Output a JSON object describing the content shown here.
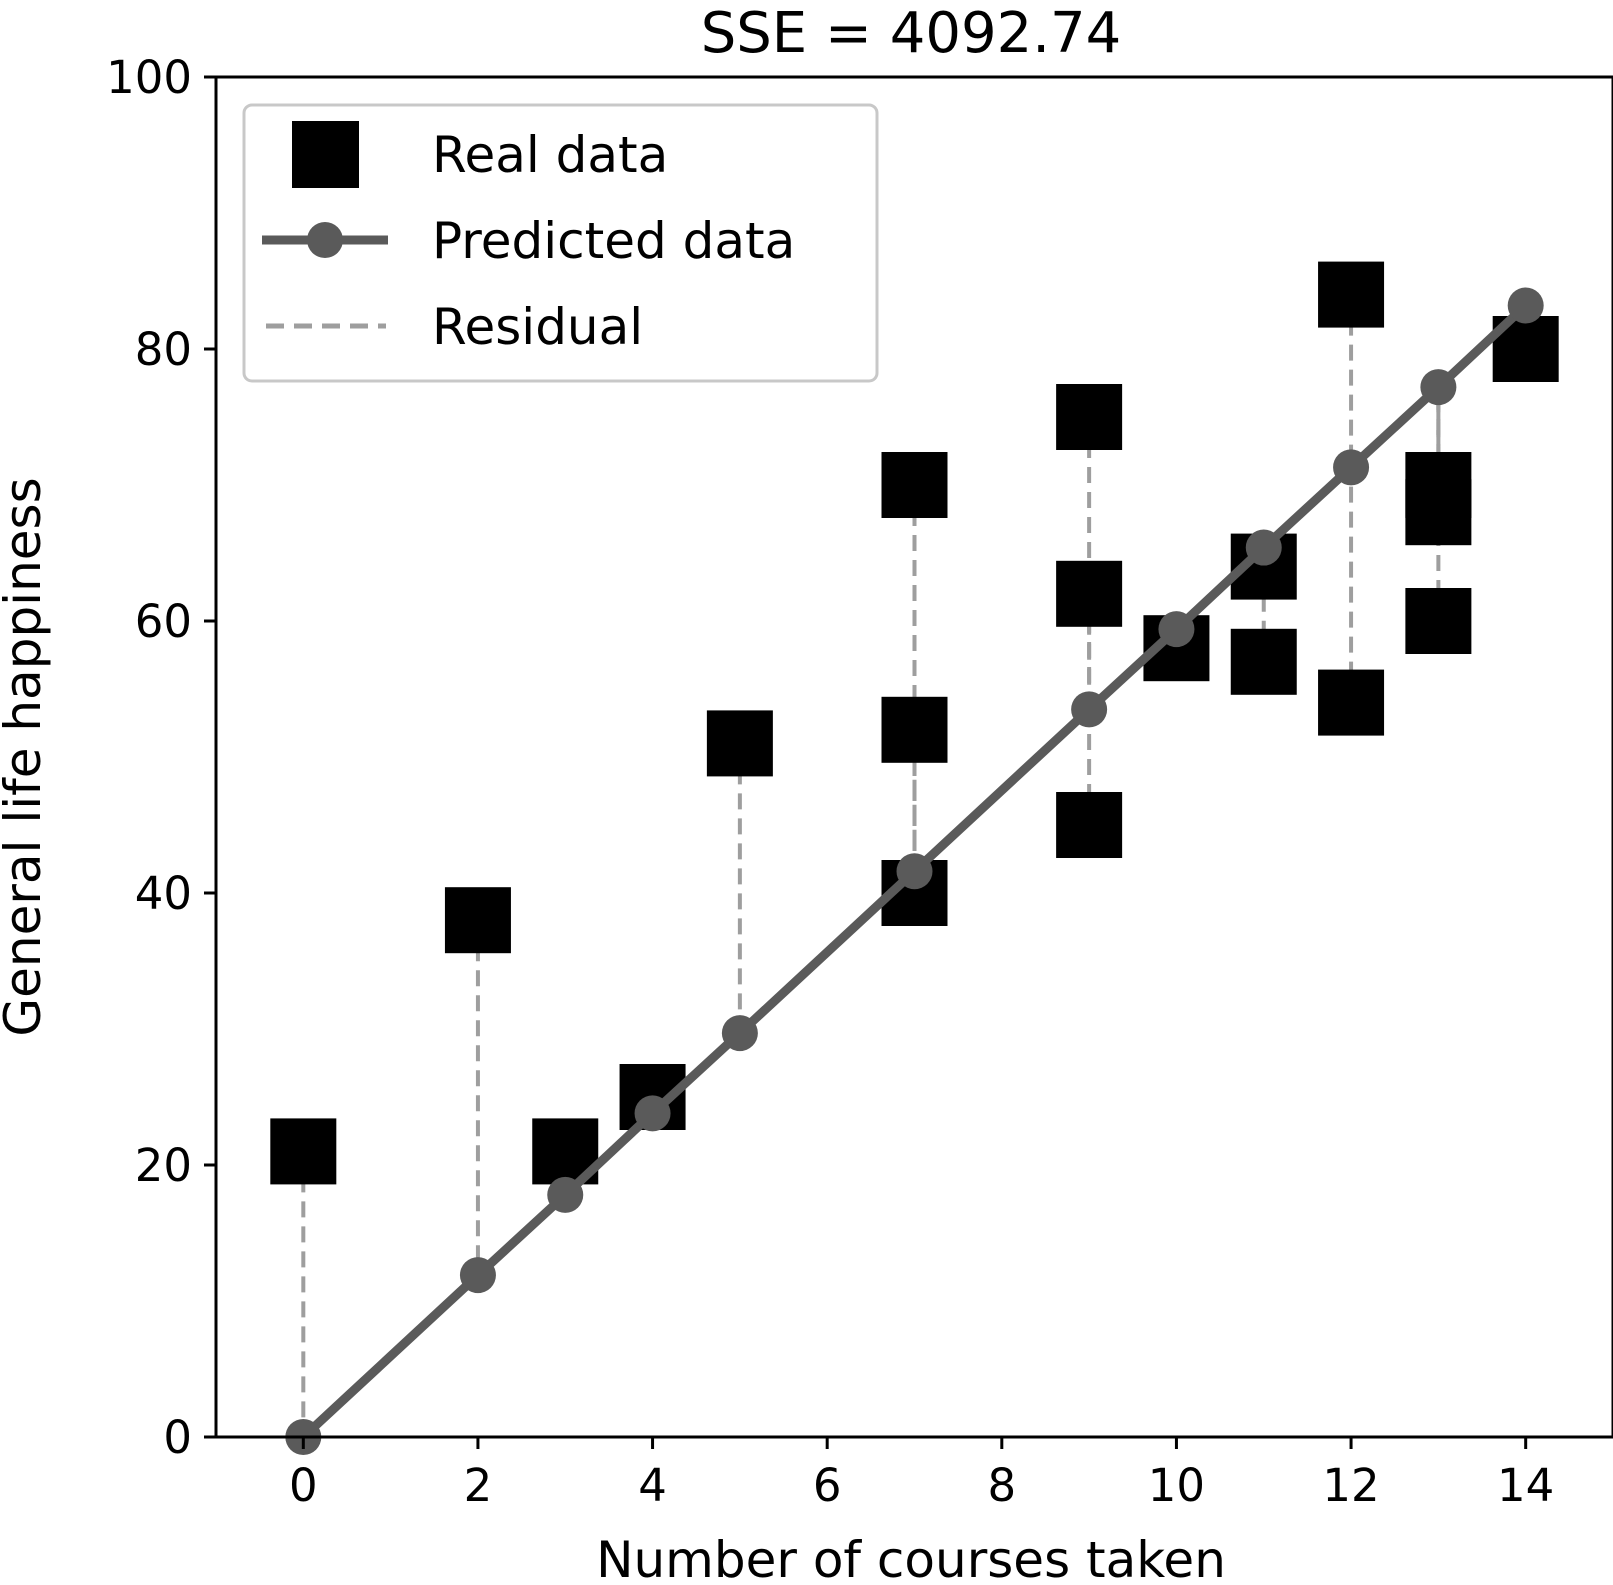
{
  "chart_data": {
    "type": "scatter",
    "title": "SSE = 4092.74",
    "xlabel": "Number of courses taken",
    "ylabel": "General life happiness",
    "xlim": [
      -1,
      15
    ],
    "ylim": [
      0,
      100
    ],
    "xticks": [
      0,
      2,
      4,
      6,
      8,
      10,
      12,
      14
    ],
    "yticks": [
      0,
      20,
      40,
      60,
      80,
      100
    ],
    "grid": false,
    "legend_position": "top-left",
    "legend": [
      "Real data",
      "Predicted data",
      "Residual"
    ],
    "real_data": {
      "x": [
        0,
        2,
        3,
        4,
        5,
        7,
        7,
        7,
        9,
        9,
        9,
        10,
        11,
        11,
        12,
        12,
        13,
        13,
        13,
        14
      ],
      "y": [
        21,
        38,
        21,
        25,
        51,
        70,
        52,
        40,
        75,
        62,
        45,
        58,
        64,
        57,
        84,
        54,
        70,
        68,
        60,
        80
      ]
    },
    "predicted_data": {
      "x": [
        0,
        2,
        3,
        4,
        5,
        7,
        9,
        10,
        11,
        12,
        13,
        14
      ],
      "y": [
        0,
        11.9,
        17.8,
        23.8,
        29.7,
        41.6,
        53.5,
        59.4,
        65.4,
        71.3,
        77.2,
        83.2
      ]
    },
    "colors": {
      "real": "#000000",
      "predicted": "#5a5a5a",
      "residual": "#9e9e9e",
      "legend_border": "#c8c8c8"
    }
  }
}
